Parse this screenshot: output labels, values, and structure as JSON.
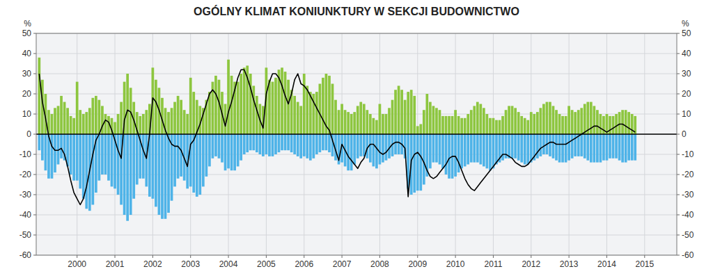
{
  "chart_data": {
    "type": "bar",
    "title": "OGÓLNY KLIMAT KONIUNKTURY W SEKCJI BUDOWNICTWO",
    "y_label": "%",
    "y2_label": "%",
    "grid": true,
    "xlim": [
      1998.92,
      2015.85
    ],
    "xticks": [
      2000,
      2001,
      2002,
      2003,
      2004,
      2005,
      2006,
      2007,
      2008,
      2009,
      2010,
      2011,
      2012,
      2013,
      2014,
      2015
    ],
    "ylim": [
      -60,
      50
    ],
    "yticks": [
      -60,
      -50,
      -40,
      -30,
      -20,
      -10,
      0,
      10,
      20,
      30,
      40,
      50
    ],
    "y2lim": [
      -60,
      50
    ],
    "y2ticks": [
      -60,
      -50,
      -40,
      -30,
      -20,
      -10,
      0,
      10,
      20,
      30,
      40,
      50
    ],
    "x": [
      1999,
      1999.0833,
      1999.1667,
      1999.25,
      1999.3333,
      1999.4167,
      1999.5,
      1999.5833,
      1999.6667,
      1999.75,
      1999.8333,
      1999.9167,
      2000,
      2000.0833,
      2000.1667,
      2000.25,
      2000.3333,
      2000.4167,
      2000.5,
      2000.5833,
      2000.6667,
      2000.75,
      2000.8333,
      2000.9167,
      2001,
      2001.0833,
      2001.1667,
      2001.25,
      2001.3333,
      2001.4167,
      2001.5,
      2001.5833,
      2001.6667,
      2001.75,
      2001.8333,
      2001.9167,
      2002,
      2002.0833,
      2002.1667,
      2002.25,
      2002.3333,
      2002.4167,
      2002.5,
      2002.5833,
      2002.6667,
      2002.75,
      2002.8333,
      2002.9167,
      2003,
      2003.0833,
      2003.1667,
      2003.25,
      2003.3333,
      2003.4167,
      2003.5,
      2003.5833,
      2003.6667,
      2003.75,
      2003.8333,
      2003.9167,
      2004,
      2004.0833,
      2004.1667,
      2004.25,
      2004.3333,
      2004.4167,
      2004.5,
      2004.5833,
      2004.6667,
      2004.75,
      2004.8333,
      2004.9167,
      2005,
      2005.0833,
      2005.1667,
      2005.25,
      2005.3333,
      2005.4167,
      2005.5,
      2005.5833,
      2005.6667,
      2005.75,
      2005.8333,
      2005.9167,
      2006,
      2006.0833,
      2006.1667,
      2006.25,
      2006.3333,
      2006.4167,
      2006.5,
      2006.5833,
      2006.6667,
      2006.75,
      2006.8333,
      2006.9167,
      2007,
      2007.0833,
      2007.1667,
      2007.25,
      2007.3333,
      2007.4167,
      2007.5,
      2007.5833,
      2007.6667,
      2007.75,
      2007.8333,
      2007.9167,
      2008,
      2008.0833,
      2008.1667,
      2008.25,
      2008.3333,
      2008.4167,
      2008.5,
      2008.5833,
      2008.6667,
      2008.75,
      2008.8333,
      2008.9167,
      2009,
      2009.0833,
      2009.1667,
      2009.25,
      2009.3333,
      2009.4167,
      2009.5,
      2009.5833,
      2009.6667,
      2009.75,
      2009.8333,
      2009.9167,
      2010,
      2010.0833,
      2010.1667,
      2010.25,
      2010.3333,
      2010.4167,
      2010.5,
      2010.5833,
      2010.6667,
      2010.75,
      2010.8333,
      2010.9167,
      2011,
      2011.0833,
      2011.1667,
      2011.25,
      2011.3333,
      2011.4167,
      2011.5,
      2011.5833,
      2011.6667,
      2011.75,
      2011.8333,
      2011.9167,
      2012,
      2012.0833,
      2012.1667,
      2012.25,
      2012.3333,
      2012.4167,
      2012.5,
      2012.5833,
      2012.6667,
      2012.75,
      2012.8333,
      2012.9167,
      2013,
      2013.0833,
      2013.1667,
      2013.25,
      2013.3333,
      2013.4167,
      2013.5,
      2013.5833,
      2013.6667,
      2013.75,
      2013.8333,
      2013.9167,
      2014,
      2014.0833,
      2014.1667,
      2014.25,
      2014.3333,
      2014.4167,
      2014.5,
      2014.5833,
      2014.6667,
      2014.75
    ],
    "series": [
      {
        "type": "bar",
        "color": "#8DC63F",
        "values": [
          38,
          27,
          20,
          12,
          10,
          13,
          14,
          19,
          16,
          13,
          9,
          8,
          26,
          12,
          10,
          11,
          13,
          18,
          19,
          17,
          14,
          10,
          9,
          8,
          6,
          10,
          16,
          26,
          30,
          23,
          16,
          11,
          9,
          10,
          12,
          15,
          33,
          27,
          23,
          18,
          13,
          11,
          13,
          16,
          19,
          17,
          12,
          10,
          28,
          21,
          17,
          14,
          13,
          17,
          21,
          26,
          29,
          27,
          21,
          15,
          37,
          29,
          26,
          26,
          30,
          33,
          34,
          30,
          24,
          19,
          15,
          14,
          33,
          27,
          26,
          28,
          32,
          33,
          31,
          27,
          22,
          19,
          16,
          14,
          30,
          24,
          21,
          20,
          21,
          25,
          28,
          30,
          29,
          25,
          17,
          12,
          15,
          12,
          11,
          10,
          11,
          14,
          16,
          15,
          12,
          10,
          8,
          7,
          15,
          10,
          10,
          13,
          17,
          22,
          24,
          22,
          17,
          21,
          22,
          19,
          4,
          5,
          12,
          20,
          16,
          14,
          13,
          12,
          9,
          9,
          9,
          9,
          12,
          9,
          8,
          8,
          10,
          12,
          14,
          16,
          15,
          13,
          10,
          8,
          8,
          7,
          7,
          9,
          12,
          14,
          14,
          13,
          11,
          9,
          8,
          7,
          11,
          10,
          11,
          13,
          15,
          16,
          16,
          14,
          12,
          10,
          9,
          9,
          14,
          12,
          11,
          12,
          13,
          15,
          16,
          16,
          14,
          12,
          10,
          9,
          10,
          9,
          9,
          10,
          11,
          12,
          12,
          11,
          10,
          9
        ]
      },
      {
        "type": "bar",
        "color": "#4EB3E8",
        "values": [
          -8,
          -13,
          -18,
          -22,
          -22,
          -19,
          -15,
          -12,
          -13,
          -16,
          -20,
          -23,
          -23,
          -27,
          -32,
          -37,
          -38,
          -35,
          -29,
          -23,
          -20,
          -20,
          -23,
          -26,
          -27,
          -30,
          -35,
          -40,
          -43,
          -40,
          -32,
          -25,
          -22,
          -22,
          -26,
          -31,
          -32,
          -36,
          -40,
          -42,
          -42,
          -39,
          -33,
          -26,
          -22,
          -21,
          -23,
          -27,
          -26,
          -29,
          -31,
          -30,
          -26,
          -21,
          -16,
          -12,
          -11,
          -12,
          -14,
          -18,
          -17,
          -18,
          -18,
          -16,
          -13,
          -10,
          -9,
          -8,
          -8,
          -9,
          -10,
          -11,
          -10,
          -11,
          -11,
          -10,
          -9,
          -8,
          -8,
          -8,
          -9,
          -10,
          -11,
          -12,
          -11,
          -12,
          -13,
          -12,
          -10,
          -9,
          -8,
          -8,
          -9,
          -11,
          -13,
          -15,
          -14,
          -16,
          -18,
          -18,
          -15,
          -12,
          -11,
          -11,
          -12,
          -14,
          -16,
          -17,
          -15,
          -14,
          -13,
          -12,
          -11,
          -10,
          -10,
          -10,
          -12,
          -27,
          -30,
          -29,
          -28,
          -28,
          -25,
          -21,
          -17,
          -14,
          -14,
          -15,
          -17,
          -20,
          -22,
          -22,
          -21,
          -19,
          -17,
          -16,
          -15,
          -14,
          -14,
          -14,
          -15,
          -16,
          -17,
          -18,
          -17,
          -15,
          -14,
          -13,
          -12,
          -12,
          -12,
          -12,
          -13,
          -14,
          -15,
          -15,
          -14,
          -13,
          -12,
          -11,
          -10,
          -10,
          -11,
          -12,
          -13,
          -14,
          -14,
          -14,
          -13,
          -12,
          -11,
          -11,
          -11,
          -12,
          -13,
          -14,
          -14,
          -14,
          -14,
          -13,
          -13,
          -12,
          -12,
          -12,
          -13,
          -14,
          -14,
          -13,
          -13,
          -13
        ]
      },
      {
        "type": "line",
        "color": "#000000",
        "values": [
          30,
          16,
          8,
          -1,
          -6,
          -8,
          -8,
          -7,
          -10,
          -16,
          -23,
          -29,
          -32,
          -35,
          -32,
          -26,
          -18,
          -10,
          -3,
          0,
          4,
          7,
          6,
          2,
          -3,
          -8,
          -12,
          7,
          12,
          11,
          7,
          2,
          -3,
          -8,
          -12,
          0,
          18,
          16,
          12,
          7,
          2,
          -2,
          -5,
          -6,
          -6,
          -8,
          -12,
          -16,
          -5,
          -3,
          1,
          5,
          10,
          15,
          20,
          22,
          20,
          16,
          10,
          4,
          11,
          16,
          22,
          28,
          32,
          32,
          28,
          23,
          17,
          12,
          7,
          3,
          20,
          26,
          30,
          30,
          28,
          24,
          19,
          15,
          20,
          27,
          30,
          25,
          24,
          22,
          19,
          16,
          13,
          10,
          7,
          4,
          2,
          -3,
          -8,
          -13,
          -5,
          -8,
          -11,
          -13,
          -15,
          -17,
          -14,
          -12,
          -7,
          -5,
          -5,
          -7,
          -9,
          -10,
          -9,
          -7,
          -5,
          -4,
          -4,
          -5,
          -7,
          -31,
          -13,
          -10,
          -9,
          -11,
          -14,
          -18,
          -21,
          -22,
          -21,
          -19,
          -17,
          -15,
          -12,
          -11,
          -11,
          -14,
          -18,
          -22,
          -25,
          -27,
          -28,
          -26,
          -24,
          -22,
          -20,
          -18,
          -16,
          -14,
          -12,
          -10,
          -10,
          -11,
          -12,
          -14,
          -15,
          -16,
          -16,
          -15,
          -13,
          -11,
          -9,
          -7,
          -6,
          -5,
          -4,
          -4,
          -5,
          -5,
          -5,
          -5,
          -4,
          -3,
          -2,
          -1,
          0,
          1,
          2,
          3,
          4,
          4,
          3,
          2,
          1,
          2,
          3,
          4,
          5,
          5,
          4,
          3,
          2,
          1
        ]
      }
    ]
  }
}
